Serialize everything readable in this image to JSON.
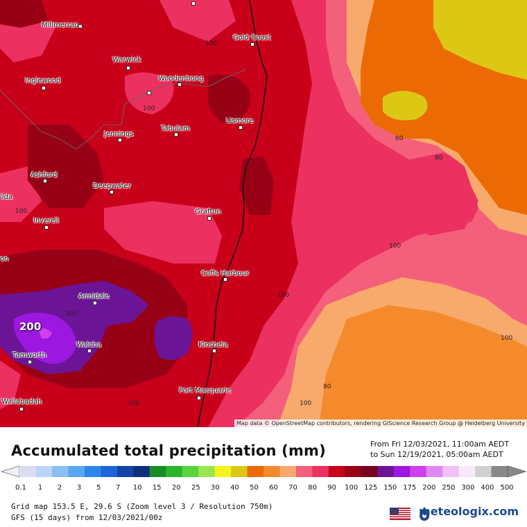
{
  "map": {
    "places": [
      {
        "name": "Millmerran"
      },
      {
        "name": "Gold Coast"
      },
      {
        "name": "Warwick"
      },
      {
        "name": "Inglewood"
      },
      {
        "name": "Woodenbong"
      },
      {
        "name": "Lismore"
      },
      {
        "name": "Tabulam"
      },
      {
        "name": "Jennings"
      },
      {
        "name": "Ashford"
      },
      {
        "name": "Deepwater"
      },
      {
        "name": "Inverell"
      },
      {
        "name": "Grafton"
      },
      {
        "name": "Coffs Harbour"
      },
      {
        "name": "Armidale"
      },
      {
        "name": "Walcha"
      },
      {
        "name": "Tamworth"
      },
      {
        "name": "Kinchela"
      },
      {
        "name": "Port Macquarie"
      },
      {
        "name": "Wallabadah"
      },
      {
        "name": "ilda"
      },
      {
        "name": "on"
      }
    ],
    "contour_labels": [
      "100",
      "100",
      "100",
      "60",
      "80",
      "100",
      "100",
      "100",
      "80",
      "100",
      "100",
      "100",
      "100"
    ],
    "peak_value": "200",
    "attribution": "Map data © OpenStreetMap contributors, rendering GIScience Research Group @ Heidelberg University"
  },
  "footer": {
    "title": "Accumulated total precipitation (mm)",
    "date_from": "From Fri 12/03/2021, 11:00am AEDT",
    "date_to": "to Sun 12/19/2021, 05:00am AEDT",
    "scale_ticks": [
      "0.1",
      "1",
      "2",
      "3",
      "5",
      "7",
      "10",
      "15",
      "20",
      "25",
      "30",
      "40",
      "50",
      "60",
      "70",
      "80",
      "90",
      "100",
      "125",
      "150",
      "175",
      "200",
      "250",
      "300",
      "400",
      "500"
    ],
    "scale_colors": [
      "#dcdcf0",
      "#bcd4f6",
      "#8cc0f4",
      "#5aa6f0",
      "#2f86ea",
      "#1c64d8",
      "#1444a8",
      "#0e2f7c",
      "#1a8c2a",
      "#2bb52b",
      "#58d43c",
      "#98e650",
      "#f4f41c",
      "#dcc814",
      "#ec6a04",
      "#f48a2c",
      "#f8aa6c",
      "#f4607c",
      "#ec3060",
      "#c8001a",
      "#980016",
      "#78001e",
      "#6c1496",
      "#9c18e0",
      "#d040f0",
      "#e088f4",
      "#f0c0f8",
      "#f8e8fc",
      "#d0d0d0",
      "#888888"
    ],
    "grid_info": "Grid map 153.5 E, 29.6 S (Zoom level 3 / Resolution 750m)",
    "model_info": "GFS (15 days) from 12/03/2021/00z",
    "brand": "meteologix.com"
  }
}
